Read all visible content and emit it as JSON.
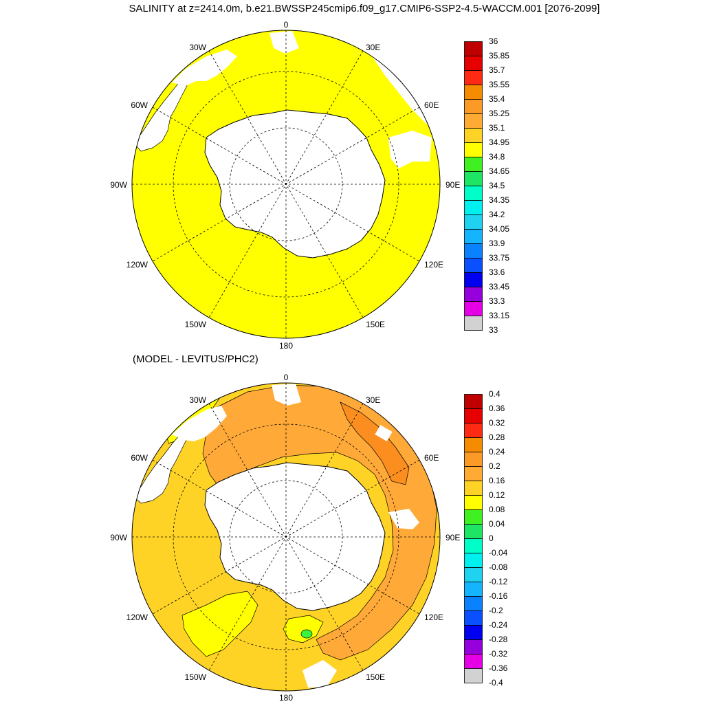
{
  "title": "SALINITY at z=2414.0m, b.e21.BWSSP245cmip6.f09_g17.CMIP6-SSP2-4.5-WACCM.001 [2076-2099]",
  "subtitle": "(MODEL - LEVITUS/PHC2)",
  "lon_labels": {
    "top": "0",
    "bottom": "180",
    "left": "90W",
    "right": "90E",
    "upper_left_1": "30W",
    "upper_left_2": "60W",
    "upper_right_1": "30E",
    "upper_right_2": "60E",
    "lower_left_1": "120W",
    "lower_left_2": "150W",
    "lower_right_1": "120E",
    "lower_right_2": "150E"
  },
  "colors": {
    "land": "#ffffff",
    "top_field": "#ffff00",
    "bottom_base": "#ffd326",
    "bottom_high": "#ffa939",
    "bottom_higher": "#fc8e1f",
    "bottom_low": "#ffff00",
    "bottom_green": "#3cf43c"
  },
  "colorbar_top": {
    "labels": [
      "36",
      "35.85",
      "35.7",
      "35.55",
      "35.4",
      "35.25",
      "35.1",
      "34.95",
      "34.8",
      "34.65",
      "34.5",
      "34.35",
      "34.2",
      "34.05",
      "33.9",
      "33.75",
      "33.6",
      "33.45",
      "33.3",
      "33.15",
      "33"
    ],
    "colors": [
      "#c00000",
      "#e60000",
      "#ff2a14",
      "#f58c00",
      "#fc9a28",
      "#ffaa33",
      "#ffd326",
      "#ffff00",
      "#41f020",
      "#1ee664",
      "#00ffc8",
      "#00f0f0",
      "#1ed2f0",
      "#14b4ff",
      "#0a82ff",
      "#0a50ff",
      "#0000f0",
      "#9600dc",
      "#e600e6",
      "#d2d2d2",
      "#6e6e6e"
    ]
  },
  "colorbar_bottom": {
    "labels": [
      "0.4",
      "0.36",
      "0.32",
      "0.28",
      "0.24",
      "0.2",
      "0.16",
      "0.12",
      "0.08",
      "0.04",
      "0",
      "-0.04",
      "-0.08",
      "-0.12",
      "-0.16",
      "-0.2",
      "-0.24",
      "-0.28",
      "-0.32",
      "-0.36",
      "-0.4"
    ],
    "colors": [
      "#c00000",
      "#e60000",
      "#ff2a14",
      "#f58c00",
      "#fc9a28",
      "#ffaa33",
      "#ffd326",
      "#ffff00",
      "#41f020",
      "#1ee664",
      "#00ffc8",
      "#00f0f0",
      "#1ed2f0",
      "#14b4ff",
      "#0a82ff",
      "#0a50ff",
      "#0000f0",
      "#9600dc",
      "#e600e6",
      "#d2d2d2",
      "#6e6e6e"
    ]
  }
}
